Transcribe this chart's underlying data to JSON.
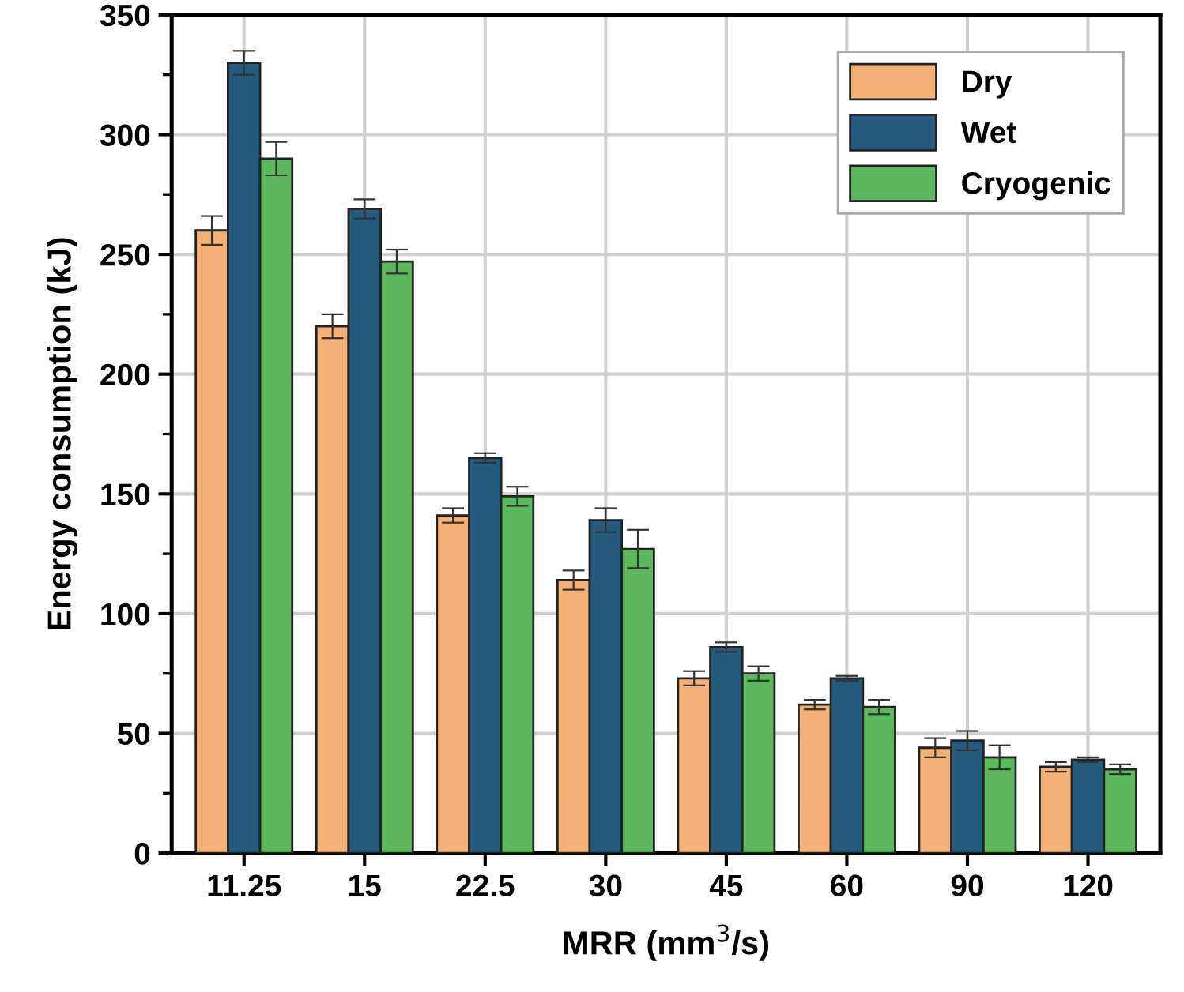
{
  "chart_data": {
    "type": "bar",
    "xlabel": "MRR (mm$^{3}$/s)",
    "ylabel": "Energy consumption (kJ)",
    "categories": [
      "11.25",
      "15",
      "22.5",
      "30",
      "45",
      "60",
      "90",
      "120"
    ],
    "series": [
      {
        "name": "Dry",
        "color": "#f4b176",
        "values": [
          260,
          220,
          141,
          114,
          73,
          62,
          44,
          36
        ],
        "errors": [
          6,
          5,
          3,
          4,
          3,
          2,
          4,
          2
        ]
      },
      {
        "name": "Wet",
        "color": "#245a7e",
        "values": [
          330,
          269,
          165,
          139,
          86,
          73,
          47,
          39
        ],
        "errors": [
          5,
          4,
          2,
          5,
          2,
          1,
          4,
          1
        ]
      },
      {
        "name": "Cryogenic",
        "color": "#5cb85c",
        "values": [
          290,
          247,
          149,
          127,
          75,
          61,
          40,
          35
        ],
        "errors": [
          7,
          5,
          4,
          8,
          3,
          3,
          5,
          2
        ]
      }
    ],
    "ylim": [
      0,
      350
    ],
    "yticks": [
      0,
      50,
      100,
      150,
      200,
      250,
      300,
      350
    ],
    "grid": true,
    "legend": "top right"
  }
}
